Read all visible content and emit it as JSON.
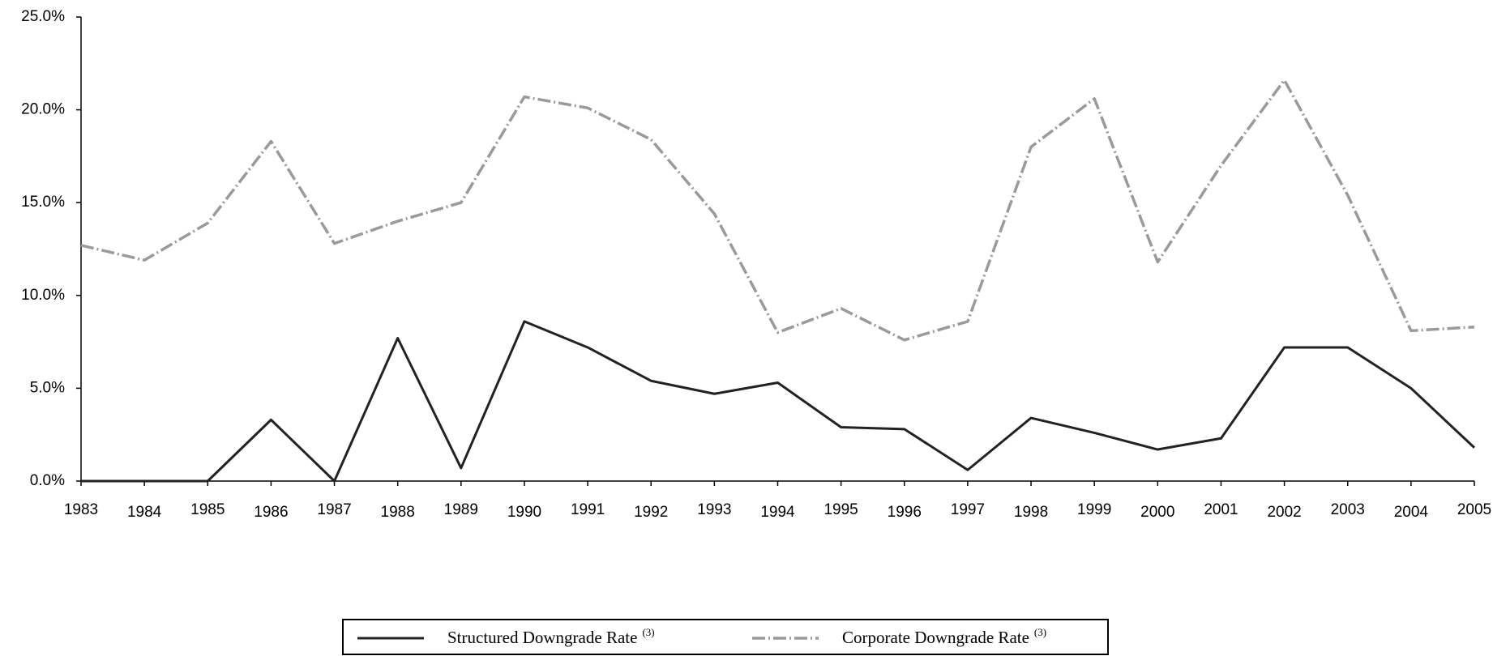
{
  "chart_data": {
    "type": "line",
    "categories": [
      "1983",
      "1984",
      "1985",
      "1986",
      "1987",
      "1988",
      "1989",
      "1990",
      "1991",
      "1992",
      "1993",
      "1994",
      "1995",
      "1996",
      "1997",
      "1998",
      "1999",
      "2000",
      "2001",
      "2002",
      "2003",
      "2004",
      "2005"
    ],
    "series": [
      {
        "name": "Structured Downgrade Rate",
        "name_note": "(3)",
        "color": "#222222",
        "values": [
          0,
          0,
          0,
          3.3,
          0,
          7.7,
          0.7,
          8.6,
          7.2,
          5.4,
          4.7,
          5.3,
          2.9,
          2.8,
          0.6,
          3.4,
          2.6,
          1.7,
          2.3,
          7.2,
          7.2,
          5.0,
          1.8
        ]
      },
      {
        "name": "Corporate Downgrade Rate",
        "name_note": "(3)",
        "color": "#9a9a9a",
        "values": [
          12.7,
          11.9,
          13.9,
          18.3,
          12.8,
          14.0,
          15.0,
          20.7,
          20.1,
          18.4,
          14.4,
          8.0,
          9.3,
          7.6,
          8.6,
          18.0,
          20.6,
          11.8,
          17.0,
          21.6,
          15.4,
          8.1,
          8.3
        ]
      }
    ],
    "ylim": [
      0,
      25
    ],
    "yticks": [
      {
        "value": 0,
        "label": "0.0%"
      },
      {
        "value": 5,
        "label": "5.0%"
      },
      {
        "value": 10,
        "label": "10.0%"
      },
      {
        "value": 15,
        "label": "15.0%"
      },
      {
        "value": 20,
        "label": "20.0%"
      },
      {
        "value": 25,
        "label": "25.0%"
      }
    ],
    "grid": false
  }
}
